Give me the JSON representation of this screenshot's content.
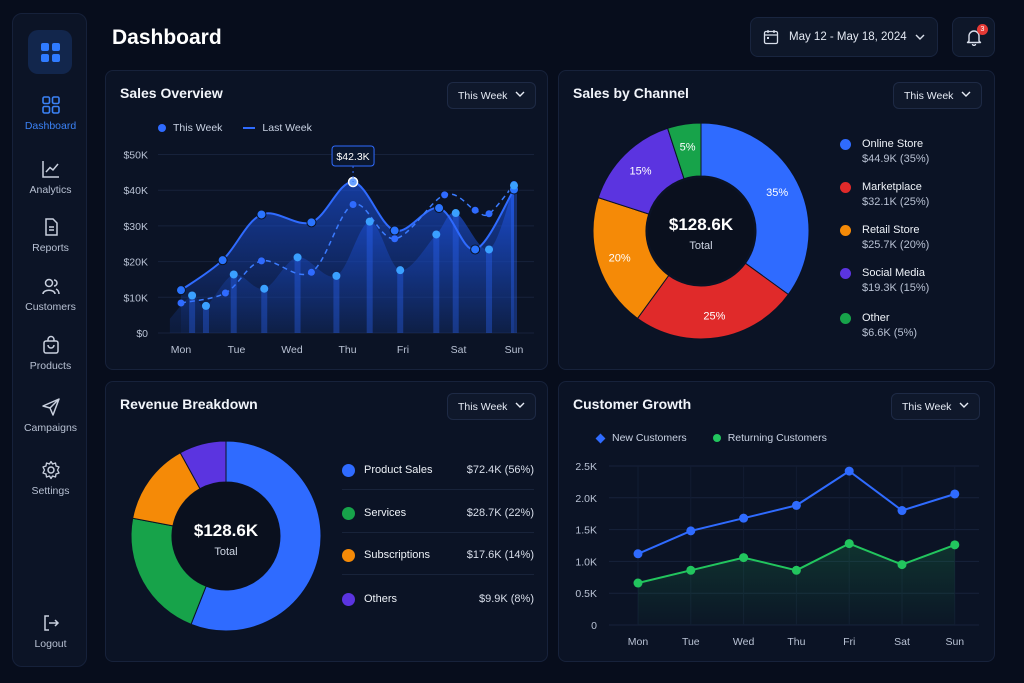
{
  "header": {
    "title": "Dashboard",
    "date_range": "May 12 - May 18, 2024",
    "notification_count": "3"
  },
  "sidebar": {
    "items": [
      {
        "label": "Dashboard",
        "icon": "dashboard-icon",
        "active": true
      },
      {
        "label": "Analytics",
        "icon": "analytics-icon"
      },
      {
        "label": "Reports",
        "icon": "reports-icon"
      },
      {
        "label": "Customers",
        "icon": "customers-icon"
      },
      {
        "label": "Products",
        "icon": "products-icon"
      },
      {
        "label": "Campaigns",
        "icon": "campaigns-icon"
      },
      {
        "label": "Settings",
        "icon": "settings-icon"
      }
    ],
    "logout_label": "Logout"
  },
  "colors": {
    "accent": "#2f6bff",
    "red": "#e02a2a",
    "orange": "#f58a07",
    "purple": "#5b34e0",
    "green": "#17a34a",
    "growth_green": "#22c55e"
  },
  "sales_overview": {
    "title": "Sales Overview",
    "filter": "This Week",
    "legend_this_week": "This Week",
    "legend_last_week": "Last Week",
    "tooltip": "$42.3K"
  },
  "sales_by_channel": {
    "title": "Sales by Channel",
    "filter": "This Week",
    "center_value": "$128.6K",
    "center_label": "Total",
    "items": [
      {
        "name": "Online Store",
        "value": "$44.9K (35%)"
      },
      {
        "name": "Marketplace",
        "value": "$32.1K (25%)"
      },
      {
        "name": "Retail Store",
        "value": "$25.7K (20%)"
      },
      {
        "name": "Social Media",
        "value": "$19.3K (15%)"
      },
      {
        "name": "Other",
        "value": "$6.6K (5%)"
      }
    ],
    "slice_labels": [
      "35%",
      "25%",
      "20%",
      "15%",
      "5%"
    ]
  },
  "revenue_breakdown": {
    "title": "Revenue Breakdown",
    "filter": "This Week",
    "center_value": "$128.6K",
    "center_label": "Total",
    "items": [
      {
        "name": "Product Sales",
        "value": "$72.4K (56%)"
      },
      {
        "name": "Services",
        "value": "$28.7K (22%)"
      },
      {
        "name": "Subscriptions",
        "value": "$17.6K (14%)"
      },
      {
        "name": "Others",
        "value": "$9.9K (8%)"
      }
    ]
  },
  "customer_growth": {
    "title": "Customer Growth",
    "filter": "This Week",
    "legend_new": "New Customers",
    "legend_returning": "Returning Customers"
  },
  "chart_data": [
    {
      "type": "area",
      "title": "Sales Overview",
      "categories": [
        "Mon",
        "Tue",
        "Wed",
        "Thu",
        "Fri",
        "Sat",
        "Sun"
      ],
      "y_ticks": [
        "$0",
        "$10K",
        "$20K",
        "$30K",
        "$40K",
        "$50K"
      ],
      "ylim": [
        0,
        50
      ],
      "series": [
        {
          "name": "This Week",
          "x": [
            0,
            0.75,
            1.45,
            2.35,
            3.1,
            3.85,
            4.65,
            5.3,
            6
          ],
          "values": [
            12,
            20.4,
            33.2,
            31,
            42.3,
            28.7,
            35,
            23.4,
            40.2
          ]
        },
        {
          "name": "Last Week",
          "x": [
            0,
            0.8,
            1.45,
            2.35,
            3.1,
            3.85,
            4.75,
            5.3,
            5.55,
            6
          ],
          "values": [
            8.4,
            11.2,
            20.2,
            17,
            36,
            26.4,
            38.7,
            34.4,
            33.4,
            41.6
          ]
        },
        {
          "name": "",
          "x": [
            -0.2,
            0.2,
            0.45,
            0.95,
            1.5,
            2.1,
            2.8,
            3.4,
            3.95,
            4.6,
            4.95,
            5.55,
            6
          ],
          "values": [
            4,
            10.5,
            7.6,
            16.4,
            12.4,
            21.2,
            16,
            31.2,
            17.6,
            27.6,
            33.6,
            23.4,
            41.3
          ]
        }
      ],
      "tooltip": {
        "label": "$42.3K",
        "x": 3.1,
        "y": 42.3
      }
    },
    {
      "type": "pie",
      "title": "Sales by Channel",
      "categories": [
        "Online Store",
        "Marketplace",
        "Retail Store",
        "Social Media",
        "Other"
      ],
      "values": [
        44.9,
        32.1,
        25.7,
        19.3,
        6.6
      ],
      "percent": [
        35,
        25,
        20,
        15,
        5
      ]
    },
    {
      "type": "pie",
      "title": "Revenue Breakdown",
      "categories": [
        "Product Sales",
        "Services",
        "Subscriptions",
        "Others"
      ],
      "values": [
        72.4,
        28.7,
        17.6,
        9.9
      ],
      "percent": [
        56,
        22,
        14,
        8
      ]
    },
    {
      "type": "line",
      "title": "Customer Growth",
      "categories": [
        "Mon",
        "Tue",
        "Wed",
        "Thu",
        "Fri",
        "Sat",
        "Sun"
      ],
      "y_ticks": [
        "0",
        "0.5K",
        "1.0K",
        "1.5K",
        "2.0K",
        "2.5K"
      ],
      "ylim": [
        0,
        2.5
      ],
      "series": [
        {
          "name": "New Customers",
          "values": [
            1.12,
            1.48,
            1.68,
            1.88,
            2.42,
            1.8,
            2.06
          ]
        },
        {
          "name": "Returning Customers",
          "values": [
            0.66,
            0.86,
            1.06,
            0.86,
            1.28,
            0.95,
            1.26
          ]
        }
      ]
    }
  ]
}
